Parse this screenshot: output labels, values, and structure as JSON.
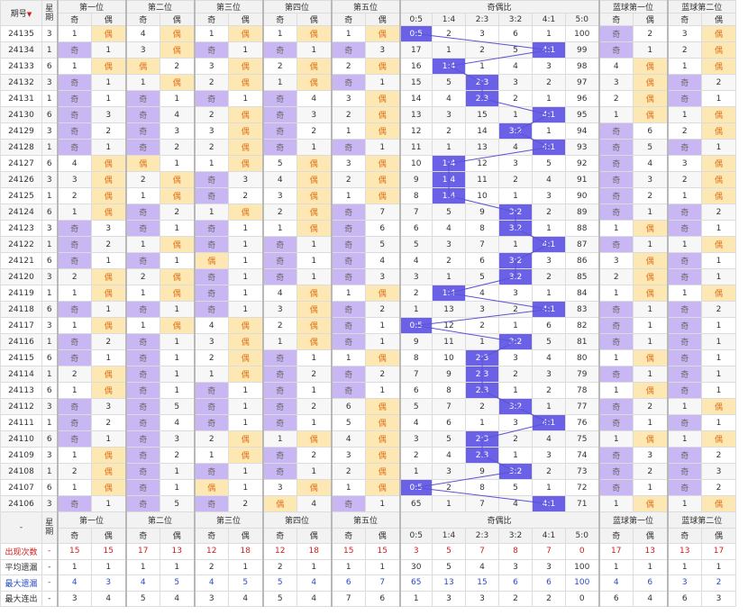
{
  "header": {
    "period_label": "期号",
    "week_label": "星期",
    "groups": [
      "第一位",
      "第二位",
      "第三位",
      "第四位",
      "第五位",
      "奇偶比",
      "蓝球第一位",
      "蓝球第二位"
    ],
    "odd_label": "奇",
    "even_label": "偶",
    "ratio_cols": [
      "0:5",
      "1:4",
      "2:3",
      "3:2",
      "4:1",
      "5:0"
    ]
  },
  "rows": [
    {
      "p": "24135",
      "w": "3",
      "pos": [
        [
          1,
          "E"
        ],
        [
          4,
          "E"
        ],
        [
          1,
          "E"
        ],
        [
          1,
          "E"
        ],
        [
          1,
          "E"
        ]
      ],
      "r": [
        [
          "0:5"
        ],
        2,
        3,
        6,
        1,
        100
      ],
      "ri": 0,
      "b": [
        [
          1,
          "E"
        ],
        [
          2,
          "E"
        ]
      ],
      "bv": [
        [
          [
            "O",
            0
          ],
          2
        ],
        [
          3,
          [
            "E"
          ]
        ]
      ]
    },
    {
      "p": "24134",
      "w": "1",
      "pos": [
        [
          1,
          "E"
        ],
        [
          3,
          "E"
        ],
        [
          2,
          "E"
        ],
        [
          2,
          "E"
        ],
        [
          3,
          "E"
        ]
      ],
      "ri": 4
    },
    {
      "p": "24133",
      "w": "6",
      "ri": 1
    },
    {
      "p": "24132",
      "w": "3",
      "ri": 2
    },
    {
      "p": "24131",
      "w": "1",
      "ri": 2
    },
    {
      "p": "24130",
      "w": "6",
      "ri": 4
    },
    {
      "p": "24129",
      "w": "3",
      "ri": 3
    },
    {
      "p": "24128",
      "w": "1",
      "ri": 4
    },
    {
      "p": "24127",
      "w": "6",
      "ri": 1
    },
    {
      "p": "24126",
      "w": "3",
      "ri": 1
    },
    {
      "p": "24125",
      "w": "1",
      "ri": 1
    },
    {
      "p": "24124",
      "w": "6",
      "ri": 3
    },
    {
      "p": "24123",
      "w": "3",
      "ri": 3
    },
    {
      "p": "24122",
      "w": "1",
      "ri": 4
    },
    {
      "p": "24121",
      "w": "6",
      "ri": 3
    },
    {
      "p": "24120",
      "w": "3",
      "ri": 3
    },
    {
      "p": "24119",
      "w": "1",
      "ri": 1
    },
    {
      "p": "24118",
      "w": "6",
      "ri": 4
    },
    {
      "p": "24117",
      "w": "3",
      "ri": 0
    },
    {
      "p": "24116",
      "w": "1",
      "ri": 3
    },
    {
      "p": "24115",
      "w": "6",
      "ri": 2
    },
    {
      "p": "24114",
      "w": "1",
      "ri": 2
    },
    {
      "p": "24113",
      "w": "6",
      "ri": 2
    },
    {
      "p": "24112",
      "w": "3",
      "ri": 3
    },
    {
      "p": "24111",
      "w": "1",
      "ri": 4
    },
    {
      "p": "24110",
      "w": "6",
      "ri": 2
    },
    {
      "p": "24109",
      "w": "3",
      "ri": 2
    },
    {
      "p": "24108",
      "w": "1",
      "ri": 3
    },
    {
      "p": "24107",
      "w": "6",
      "ri": 0
    },
    {
      "p": "24106",
      "w": "3",
      "ri": 4
    }
  ],
  "cells": [
    [
      "3",
      "1",
      "偶",
      "4",
      "偶",
      "1",
      "偶",
      "1",
      "偶",
      "1",
      "偶",
      "0:5",
      "2",
      "3",
      "6",
      "1",
      "100",
      "奇",
      "2",
      "3",
      "偶"
    ],
    [
      "1",
      "奇",
      "1",
      "3",
      "偶",
      "奇",
      "1",
      "奇",
      "1",
      "奇",
      "3",
      "17",
      "1",
      "2",
      "5",
      "4:1",
      "99",
      "奇",
      "1",
      "2",
      "偶"
    ],
    [
      "6",
      "1",
      "偶",
      "偶",
      "2",
      "3",
      "偶",
      "2",
      "偶",
      "2",
      "偶",
      "16",
      "1:4",
      "1",
      "4",
      "3",
      "98",
      "4",
      "偶",
      "1",
      "偶"
    ],
    [
      "3",
      "奇",
      "1",
      "1",
      "偶",
      "2",
      "偶",
      "1",
      "偶",
      "奇",
      "1",
      "15",
      "5",
      "2:3",
      "3",
      "2",
      "97",
      "3",
      "偶",
      "奇",
      "2"
    ],
    [
      "1",
      "奇",
      "1",
      "奇",
      "1",
      "奇",
      "1",
      "奇",
      "4",
      "3",
      "偶",
      "14",
      "4",
      "2:3",
      "2",
      "1",
      "96",
      "2",
      "偶",
      "奇",
      "1"
    ],
    [
      "6",
      "奇",
      "3",
      "奇",
      "4",
      "2",
      "偶",
      "奇",
      "3",
      "2",
      "偶",
      "13",
      "3",
      "15",
      "1",
      "4:1",
      "95",
      "1",
      "偶",
      "1",
      "偶"
    ],
    [
      "3",
      "奇",
      "2",
      "奇",
      "3",
      "3",
      "偶",
      "奇",
      "2",
      "1",
      "偶",
      "12",
      "2",
      "14",
      "3:2",
      "1",
      "94",
      "奇",
      "6",
      "2",
      "偶"
    ],
    [
      "1",
      "奇",
      "1",
      "奇",
      "2",
      "2",
      "偶",
      "奇",
      "1",
      "奇",
      "1",
      "11",
      "1",
      "13",
      "4",
      "4:1",
      "93",
      "奇",
      "5",
      "奇",
      "1"
    ],
    [
      "6",
      "4",
      "偶",
      "偶",
      "1",
      "1",
      "偶",
      "5",
      "偶",
      "3",
      "偶",
      "10",
      "1:4",
      "12",
      "3",
      "5",
      "92",
      "奇",
      "4",
      "3",
      "偶"
    ],
    [
      "3",
      "3",
      "偶",
      "2",
      "偶",
      "奇",
      "3",
      "4",
      "偶",
      "2",
      "偶",
      "9",
      "1:4",
      "11",
      "2",
      "4",
      "91",
      "奇",
      "3",
      "2",
      "偶"
    ],
    [
      "1",
      "2",
      "偶",
      "1",
      "偶",
      "奇",
      "2",
      "3",
      "偶",
      "1",
      "偶",
      "8",
      "1:4",
      "10",
      "1",
      "3",
      "90",
      "奇",
      "2",
      "1",
      "偶"
    ],
    [
      "6",
      "1",
      "偶",
      "奇",
      "2",
      "1",
      "偶",
      "2",
      "偶",
      "奇",
      "7",
      "7",
      "5",
      "9",
      "3:2",
      "2",
      "89",
      "奇",
      "1",
      "奇",
      "2"
    ],
    [
      "3",
      "奇",
      "3",
      "奇",
      "1",
      "奇",
      "1",
      "1",
      "偶",
      "奇",
      "6",
      "6",
      "4",
      "8",
      "3:2",
      "1",
      "88",
      "1",
      "偶",
      "奇",
      "1"
    ],
    [
      "1",
      "奇",
      "2",
      "1",
      "偶",
      "奇",
      "1",
      "奇",
      "1",
      "奇",
      "5",
      "5",
      "3",
      "7",
      "1",
      "4:1",
      "87",
      "奇",
      "1",
      "1",
      "偶"
    ],
    [
      "6",
      "奇",
      "1",
      "奇",
      "1",
      "偶",
      "1",
      "奇",
      "1",
      "奇",
      "4",
      "4",
      "2",
      "6",
      "3:2",
      "3",
      "86",
      "3",
      "偶",
      "奇",
      "1"
    ],
    [
      "3",
      "2",
      "偶",
      "2",
      "偶",
      "奇",
      "1",
      "奇",
      "1",
      "奇",
      "3",
      "3",
      "1",
      "5",
      "3:2",
      "2",
      "85",
      "2",
      "偶",
      "奇",
      "1"
    ],
    [
      "1",
      "1",
      "偶",
      "1",
      "偶",
      "奇",
      "1",
      "4",
      "偶",
      "1",
      "偶",
      "2",
      "1:4",
      "4",
      "3",
      "1",
      "84",
      "1",
      "偶",
      "1",
      "偶"
    ],
    [
      "6",
      "奇",
      "1",
      "奇",
      "1",
      "奇",
      "1",
      "3",
      "偶",
      "奇",
      "2",
      "1",
      "13",
      "3",
      "2",
      "4:1",
      "83",
      "奇",
      "1",
      "奇",
      "2"
    ],
    [
      "3",
      "1",
      "偶",
      "1",
      "偶",
      "4",
      "偶",
      "2",
      "偶",
      "奇",
      "1",
      "0:5",
      "12",
      "2",
      "1",
      "6",
      "82",
      "奇",
      "1",
      "奇",
      "1"
    ],
    [
      "1",
      "奇",
      "2",
      "奇",
      "1",
      "3",
      "偶",
      "1",
      "偶",
      "奇",
      "1",
      "9",
      "11",
      "1",
      "3:2",
      "5",
      "81",
      "奇",
      "1",
      "奇",
      "1"
    ],
    [
      "6",
      "奇",
      "1",
      "奇",
      "1",
      "2",
      "偶",
      "奇",
      "1",
      "1",
      "偶",
      "8",
      "10",
      "2:3",
      "3",
      "4",
      "80",
      "1",
      "偶",
      "奇",
      "1"
    ],
    [
      "1",
      "2",
      "偶",
      "奇",
      "1",
      "1",
      "偶",
      "奇",
      "2",
      "奇",
      "2",
      "7",
      "9",
      "2:3",
      "2",
      "3",
      "79",
      "奇",
      "1",
      "奇",
      "1"
    ],
    [
      "6",
      "1",
      "偶",
      "奇",
      "1",
      "奇",
      "1",
      "奇",
      "1",
      "奇",
      "1",
      "6",
      "8",
      "2:3",
      "1",
      "2",
      "78",
      "1",
      "偶",
      "奇",
      "1"
    ],
    [
      "3",
      "奇",
      "3",
      "奇",
      "5",
      "奇",
      "1",
      "奇",
      "2",
      "6",
      "偶",
      "5",
      "7",
      "2",
      "3:2",
      "1",
      "77",
      "奇",
      "2",
      "1",
      "偶"
    ],
    [
      "1",
      "奇",
      "2",
      "奇",
      "4",
      "奇",
      "1",
      "奇",
      "1",
      "5",
      "偶",
      "4",
      "6",
      "1",
      "3",
      "4:1",
      "76",
      "奇",
      "1",
      "奇",
      "1"
    ],
    [
      "6",
      "奇",
      "1",
      "奇",
      "3",
      "2",
      "偶",
      "1",
      "偶",
      "4",
      "偶",
      "3",
      "5",
      "2:3",
      "2",
      "4",
      "75",
      "1",
      "偶",
      "1",
      "偶"
    ],
    [
      "3",
      "1",
      "偶",
      "奇",
      "2",
      "1",
      "偶",
      "奇",
      "2",
      "3",
      "偶",
      "2",
      "4",
      "2:3",
      "1",
      "3",
      "74",
      "奇",
      "3",
      "奇",
      "2"
    ],
    [
      "1",
      "2",
      "偶",
      "奇",
      "1",
      "奇",
      "1",
      "奇",
      "1",
      "2",
      "偶",
      "1",
      "3",
      "9",
      "3:2",
      "2",
      "73",
      "奇",
      "2",
      "奇",
      "3"
    ],
    [
      "6",
      "1",
      "偶",
      "奇",
      "1",
      "偶",
      "1",
      "3",
      "偶",
      "1",
      "偶",
      "0:5",
      "2",
      "8",
      "5",
      "1",
      "72",
      "奇",
      "1",
      "奇",
      "2"
    ],
    [
      "3",
      "奇",
      "1",
      "奇",
      "5",
      "奇",
      "2",
      "偶",
      "4",
      "奇",
      "1",
      "65",
      "1",
      "7",
      "4",
      "4:1",
      "71",
      "1",
      "偶",
      "1",
      "偶"
    ]
  ],
  "footer": {
    "week_label": "星期",
    "dash": "-",
    "stats": [
      {
        "label": "出现次数",
        "vals": [
          "-",
          "15",
          "15",
          "17",
          "13",
          "12",
          "18",
          "12",
          "18",
          "15",
          "15",
          "3",
          "5",
          "7",
          "8",
          "7",
          "0",
          "17",
          "13",
          "13",
          "17"
        ]
      },
      {
        "label": "平均遗漏",
        "vals": [
          "-",
          "1",
          "1",
          "1",
          "1",
          "2",
          "1",
          "2",
          "1",
          "1",
          "1",
          "30",
          "5",
          "4",
          "3",
          "3",
          "100",
          "1",
          "1",
          "1",
          "1"
        ]
      },
      {
        "label": "最大遗漏",
        "vals": [
          "-",
          "4",
          "3",
          "4",
          "5",
          "4",
          "5",
          "5",
          "4",
          "6",
          "7",
          "65",
          "13",
          "15",
          "6",
          "6",
          "100",
          "4",
          "6",
          "3",
          "2"
        ]
      },
      {
        "label": "最大连出",
        "vals": [
          "-",
          "3",
          "4",
          "5",
          "4",
          "3",
          "4",
          "5",
          "4",
          "7",
          "6",
          "1",
          "3",
          "3",
          "2",
          "2",
          "0",
          "6",
          "4",
          "6",
          "3"
        ]
      }
    ]
  },
  "colors": {
    "odd": "#c9b7f3",
    "even": "#fde8b3",
    "ratio": "#6b61e6",
    "line": "#5a52d6",
    "red": "#d01c1c",
    "blue": "#2a4cc9"
  }
}
